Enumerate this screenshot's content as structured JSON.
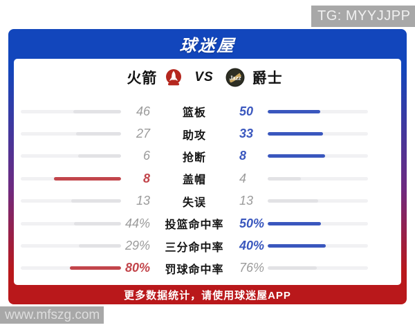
{
  "watermarks": {
    "tg": "TG: MYYJJPP",
    "site": "www.mfszg.com"
  },
  "header": {
    "logo": "球迷屋"
  },
  "matchup": {
    "home": {
      "name": "火箭",
      "logo_icon": "rockets-logo"
    },
    "vs_label": "VS",
    "away": {
      "name": "爵士",
      "logo_icon": "jazz-logo"
    }
  },
  "chart_data": {
    "type": "bar",
    "title": "火箭 VS 爵士",
    "categories": [
      "篮板",
      "助攻",
      "抢断",
      "盖帽",
      "失误",
      "投篮命中率",
      "三分命中率",
      "罚球命中率"
    ],
    "series": [
      {
        "name": "火箭",
        "values": [
          "46",
          "27",
          "6",
          "8",
          "13",
          "44%",
          "29%",
          "80%"
        ]
      },
      {
        "name": "爵士",
        "values": [
          "50",
          "33",
          "8",
          "4",
          "13",
          "50%",
          "40%",
          "76%"
        ]
      }
    ]
  },
  "stats": {
    "rows": [
      {
        "label": "篮板",
        "left": "46",
        "right": "50",
        "winner": "right"
      },
      {
        "label": "助攻",
        "left": "27",
        "right": "33",
        "winner": "right"
      },
      {
        "label": "抢断",
        "left": "6",
        "right": "8",
        "winner": "right"
      },
      {
        "label": "盖帽",
        "left": "8",
        "right": "4",
        "winner": "left"
      },
      {
        "label": "失误",
        "left": "13",
        "right": "13",
        "winner": "tie"
      },
      {
        "label": "投篮命中率",
        "left": "44%",
        "right": "50%",
        "winner": "right"
      },
      {
        "label": "三分命中率",
        "left": "29%",
        "right": "40%",
        "winner": "right"
      },
      {
        "label": "罚球命中率",
        "left": "80%",
        "right": "76%",
        "winner": "left"
      }
    ]
  },
  "footer": {
    "text": "更多数据统计，请使用球迷屋APP"
  },
  "colors": {
    "header_blue": "#1246bc",
    "footer_red": "#b9181b",
    "win_blue": "#3a57be",
    "win_red": "#c2454b",
    "bar_track": "#f1f1f3",
    "bar_gray": "#e2e2e5",
    "value_gray": "#9b9b9b",
    "watermark_gray": "#a8a8a8"
  }
}
